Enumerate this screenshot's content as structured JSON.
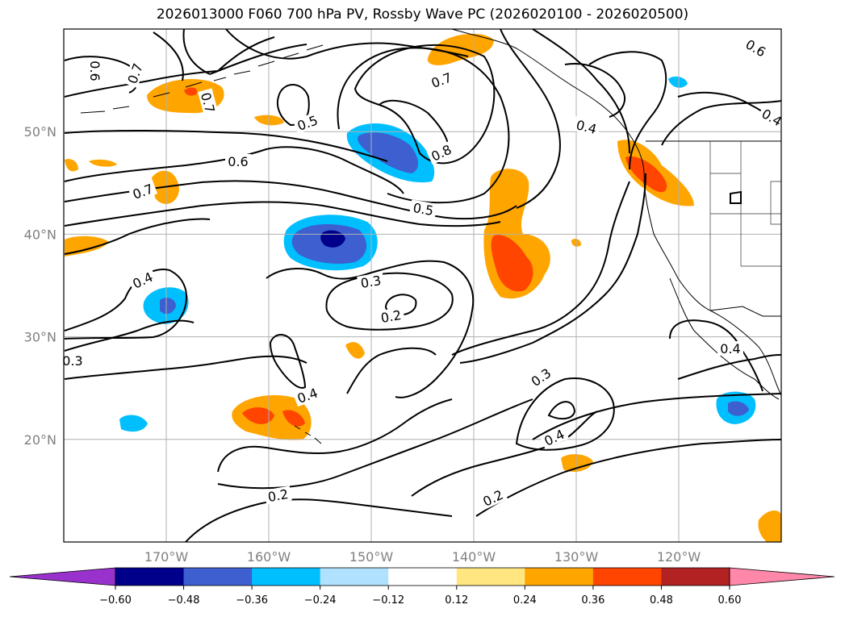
{
  "title": "2026013000 F060 700 hPa PV, Rossby Wave PC (2026020100 - 2026020500)",
  "map": {
    "lon_range": [
      -180,
      -110
    ],
    "lat_range": [
      10,
      60
    ],
    "lon_labels": [
      "170°W",
      "160°W",
      "150°W",
      "140°W",
      "130°W",
      "120°W"
    ],
    "lat_labels": [
      "50°N",
      "40°N",
      "30°N",
      "20°N"
    ]
  },
  "contour_labels": [
    "0.6",
    "0.7",
    "0.7",
    "0.5",
    "0.7",
    "0.8",
    "0.6",
    "0.7",
    "0.5",
    "0.4",
    "0.3",
    "0.2",
    "0.3",
    "0.4",
    "0.4",
    "0.3",
    "0.4",
    "0.2",
    "0.2",
    "0.4",
    "0.4",
    "0.6"
  ],
  "colorbar": {
    "ticks": [
      "−0.60",
      "−0.48",
      "−0.36",
      "−0.24",
      "−0.12",
      "0.12",
      "0.24",
      "0.36",
      "0.48",
      "0.60"
    ],
    "colors": [
      "#9932cc",
      "#00008b",
      "#3d5fcf",
      "#00bfff",
      "#b0e2ff",
      "#ffffff",
      "#ffe680",
      "#ffa500",
      "#ff4500",
      "#b22222",
      "#ff88aa"
    ]
  }
}
